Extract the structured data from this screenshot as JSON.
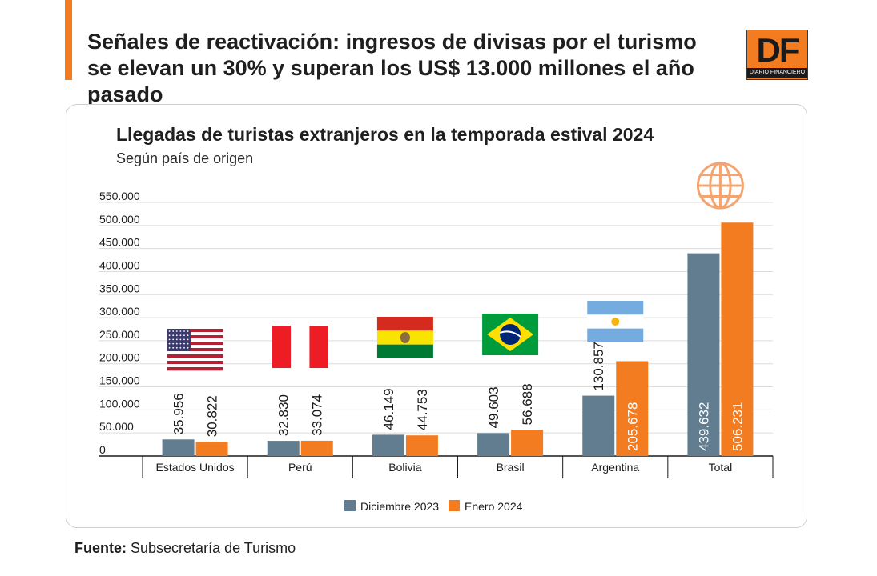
{
  "header": {
    "headline": "Señales de reactivación: ingresos de divisas por el turismo se elevan un 30% y superan los US$ 13.000 millones el año pasado",
    "logo_text": "DF",
    "logo_subtext": "DIARIO FINANCIERO"
  },
  "colors": {
    "accent": "#f47c20",
    "series_2023": "#627d8f",
    "series_2024": "#f47c20"
  },
  "chart_data": {
    "type": "bar",
    "title": "Llegadas de turistas extranjeros en la temporada estival 2024",
    "subtitle": "Según país de origen",
    "categories": [
      "Estados Unidos",
      "Perú",
      "Bolivia",
      "Brasil",
      "Argentina",
      "Total"
    ],
    "category_icons": [
      "usa-flag",
      "peru-flag",
      "bolivia-flag",
      "brazil-flag",
      "argentina-flag",
      "globe-icon"
    ],
    "series": [
      {
        "name": "Diciembre 2023",
        "color": "#627d8f",
        "values": [
          35956,
          32830,
          46149,
          49603,
          130857,
          439632
        ],
        "labels": [
          "35.956",
          "32.830",
          "46.149",
          "49.603",
          "130.857",
          "439.632"
        ]
      },
      {
        "name": "Enero 2024",
        "color": "#f47c20",
        "values": [
          30822,
          33074,
          44753,
          56688,
          205678,
          506231
        ],
        "labels": [
          "30.822",
          "33.074",
          "44.753",
          "56.688",
          "205.678",
          "506.231"
        ]
      }
    ],
    "y_ticks": [
      0,
      50000,
      100000,
      150000,
      200000,
      250000,
      300000,
      350000,
      400000,
      450000,
      500000,
      550000
    ],
    "y_tick_labels": [
      "0",
      "50.000",
      "100.000",
      "150.000",
      "200.000",
      "250.000",
      "300.000",
      "350.000",
      "400.000",
      "450.000",
      "500.000",
      "550.000"
    ],
    "ylim": [
      0,
      550000
    ],
    "grid": true,
    "legend_position": "bottom-center",
    "xlabel": "",
    "ylabel": ""
  },
  "footer": {
    "source_label": "Fuente:",
    "source_text": "Subsecretaría de Turismo"
  }
}
